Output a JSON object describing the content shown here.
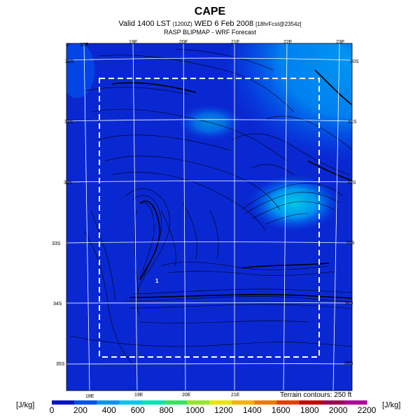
{
  "header": {
    "title": "CAPE",
    "subtitle_main": "Valid 1400 LST",
    "subtitle_code": "(1200Z)",
    "subtitle_date": "WED 6 Feb 2008",
    "subtitle_run": "[18hrFcst@2354z]",
    "subtitle2": "RASP BLIPMAP - WRF Forecast"
  },
  "map": {
    "lon_labels_top": [
      "18E",
      "19E",
      "20E",
      "21E",
      "22E",
      "23E"
    ],
    "lon_labels_bottom": [
      "18E",
      "19E",
      "20E",
      "21E"
    ],
    "lat_labels_left": [
      "30S",
      "31S",
      "32S",
      "33S",
      "34S",
      "35S"
    ],
    "lat_labels_right": [
      "30S",
      "31S",
      "32S",
      "33S",
      "34S",
      "35S"
    ],
    "point_label": "1",
    "terrain_note": "Terrain contours: 250 ft"
  },
  "colorbar": {
    "unit_left": "[J/kg]",
    "unit_right": "[J/kg]",
    "ticks": [
      "0",
      "200",
      "400",
      "600",
      "800",
      "1000",
      "1200",
      "1400",
      "1600",
      "1800",
      "2000",
      "2200"
    ],
    "colors": [
      "#0a14c8",
      "#0050f0",
      "#0096f0",
      "#00c8e6",
      "#00e6b4",
      "#32e664",
      "#96e628",
      "#e6e600",
      "#f0b400",
      "#f07800",
      "#e63c00",
      "#c80000",
      "#a00050",
      "#b40096"
    ]
  }
}
